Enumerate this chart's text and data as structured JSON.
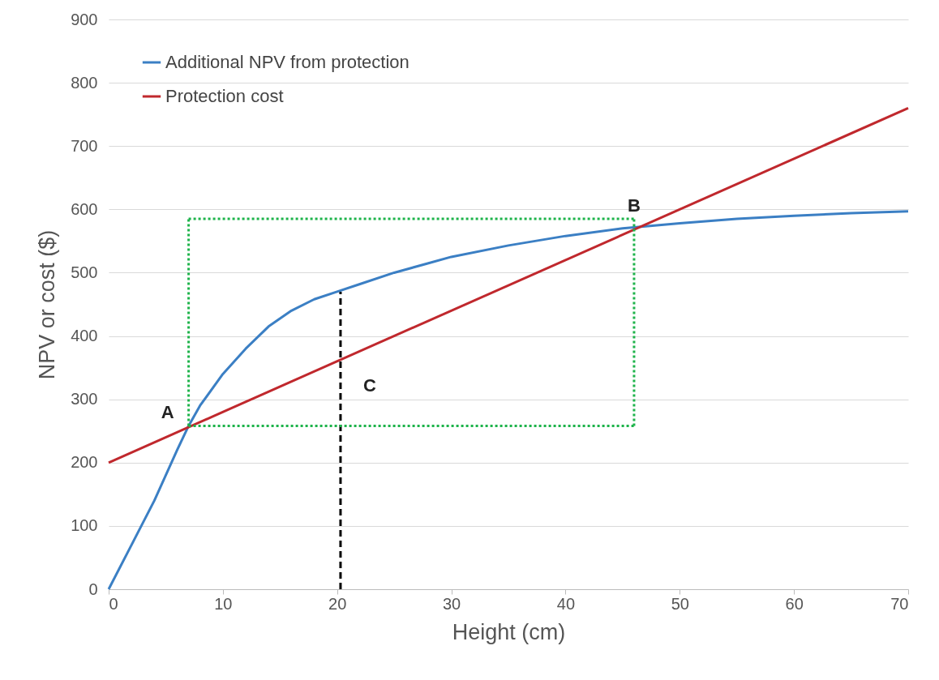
{
  "chart_data": {
    "type": "line",
    "xlabel": "Height (cm)",
    "ylabel": "NPV or cost ($)",
    "xlim": [
      0,
      70
    ],
    "xticks": [
      0,
      10,
      20,
      30,
      40,
      50,
      60,
      70
    ],
    "ylim": [
      0,
      900
    ],
    "yticks": [
      0,
      100,
      200,
      300,
      400,
      500,
      600,
      700,
      800,
      900
    ],
    "grid": "y",
    "legend": "top left",
    "marker": "none",
    "line_style": "solid",
    "series": [
      {
        "name": "Additional NPV from protection",
        "color": "#3b7fc4",
        "x": [
          0,
          2,
          4,
          6,
          7,
          8,
          10,
          12,
          14,
          16,
          18,
          20,
          22,
          25,
          28,
          30,
          35,
          40,
          45,
          50,
          55,
          60,
          65,
          70
        ],
        "values": [
          0,
          70,
          140,
          220,
          258,
          290,
          340,
          380,
          415,
          440,
          458,
          470,
          482,
          500,
          515,
          525,
          543,
          558,
          570,
          578,
          585,
          590,
          594,
          597
        ]
      },
      {
        "name": "Protection cost",
        "color": "#c0282d",
        "x": [
          0,
          70
        ],
        "values": [
          200,
          760
        ]
      },
      {
        "color": "#000000",
        "line_style": "dashed",
        "x": [
          20.3,
          20.3
        ],
        "values": [
          0,
          470
        ]
      },
      {
        "color": "#1db34a",
        "line_style": "dotted",
        "x": [
          7,
          46
        ],
        "values": [
          258,
          258
        ]
      },
      {
        "color": "#1db34a",
        "line_style": "dotted",
        "x": [
          7,
          46
        ],
        "values": [
          585,
          585
        ]
      },
      {
        "color": "#1db34a",
        "line_style": "dotted",
        "x": [
          7,
          7
        ],
        "values": [
          258,
          585
        ]
      },
      {
        "color": "#1db34a",
        "line_style": "dotted",
        "x": [
          46,
          46
        ],
        "values": [
          258,
          585
        ]
      }
    ],
    "annotations": [
      {
        "text": "A",
        "x": 7,
        "y": 256
      },
      {
        "text": "B",
        "x": 46,
        "y": 572
      },
      {
        "text": "C",
        "x": 20.3,
        "y": 362
      }
    ]
  }
}
